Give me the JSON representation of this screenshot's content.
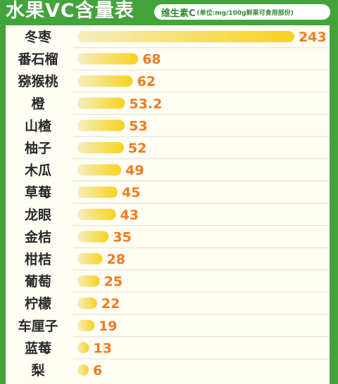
{
  "title": "水果VC含量表",
  "subtitle": {
    "main": "维生素C",
    "unit": "(单位:mg/100g鲜果可食用部份)"
  },
  "colors": {
    "background": "#44a43c",
    "bar_start": "#f5eec0",
    "bar_end": "#f8d21c",
    "value_text": "#f07a1e"
  },
  "chart_data": {
    "type": "bar",
    "orientation": "horizontal",
    "title": "水果VC含量表",
    "categories": [
      "冬枣",
      "番石榴",
      "猕猴桃",
      "橙",
      "山楂",
      "柚子",
      "木瓜",
      "草莓",
      "龙眼",
      "金桔",
      "柑桔",
      "葡萄",
      "柠檬",
      "车厘子",
      "蓝莓",
      "梨"
    ],
    "values": [
      "243",
      "68",
      "62",
      "53.2",
      "53",
      "52",
      "49",
      "45",
      "43",
      "35",
      "28",
      "25",
      "22",
      "19",
      "13",
      "6"
    ],
    "xlim": [
      0,
      243
    ],
    "grid": false,
    "legend": "none"
  }
}
